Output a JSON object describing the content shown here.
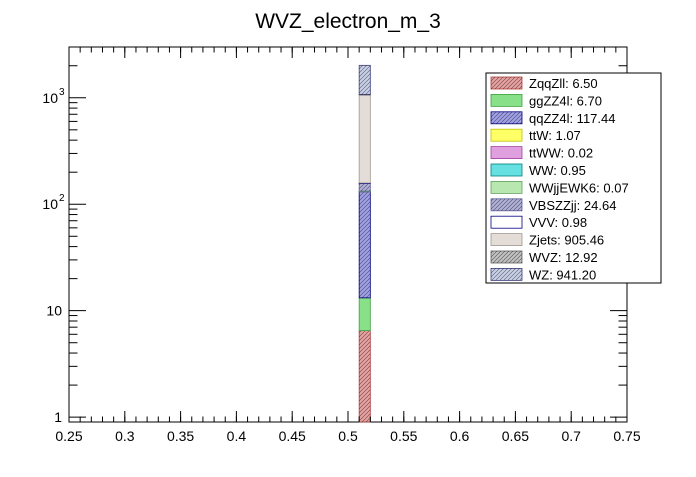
{
  "chart_data": {
    "type": "bar",
    "stacked": true,
    "title": "WVZ_electron_m_3",
    "xlabel": "",
    "ylabel": "",
    "xlim": [
      0.25,
      0.75
    ],
    "ylim": [
      0.9,
      3000
    ],
    "yscale": "log",
    "bin": [
      0.51,
      0.52
    ],
    "x_ticks": [
      "0.25",
      "0.3",
      "0.35",
      "0.4",
      "0.45",
      "0.5",
      "0.55",
      "0.6",
      "0.65",
      "0.7",
      "0.75"
    ],
    "x_tick_values": [
      0.25,
      0.3,
      0.35,
      0.4,
      0.45,
      0.5,
      0.55,
      0.6,
      0.65,
      0.7,
      0.75
    ],
    "y_ticks": [
      {
        "value": 1,
        "base": "1",
        "exp": ""
      },
      {
        "value": 10,
        "base": "10",
        "exp": ""
      },
      {
        "value": 100,
        "base": "10",
        "exp": "2"
      },
      {
        "value": 1000,
        "base": "10",
        "exp": "3"
      }
    ],
    "legend_position": "top-right",
    "series": [
      {
        "name": "ZqqZll",
        "value": 6.5,
        "label": "ZqqZll: 6.50",
        "color": "#e8a0a0",
        "stroke": "#b04040",
        "hatch": true
      },
      {
        "name": "ggZZ4l",
        "value": 6.7,
        "label": "ggZZ4l: 6.70",
        "color": "#88e088",
        "stroke": "#40a040",
        "hatch": false
      },
      {
        "name": "qqZZ4l",
        "value": 117.44,
        "label": "qqZZ4l: 117.44",
        "color": "#a0a0e8",
        "stroke": "#000080",
        "hatch": true
      },
      {
        "name": "ttW",
        "value": 1.07,
        "label": "ttW: 1.07",
        "color": "#ffff66",
        "stroke": "#c0c000",
        "hatch": false
      },
      {
        "name": "ttWW",
        "value": 0.02,
        "label": "ttWW: 0.02",
        "color": "#e0a0e0",
        "stroke": "#a040a0",
        "hatch": false
      },
      {
        "name": "WW",
        "value": 0.95,
        "label": "WW: 0.95",
        "color": "#66e0e0",
        "stroke": "#008080",
        "hatch": false
      },
      {
        "name": "WWjjEWK6",
        "value": 0.07,
        "label": "WWjjEWK6: 0.07",
        "color": "#b8e8b0",
        "stroke": "#60a060",
        "hatch": false
      },
      {
        "name": "VBSZZjj",
        "value": 24.64,
        "label": "VBSZZjj: 24.64",
        "color": "#b0b0d8",
        "stroke": "#6060a0",
        "hatch": true
      },
      {
        "name": "VVV",
        "value": 0.98,
        "label": "VVV: 0.98",
        "color": "#ffffff",
        "stroke": "#000080",
        "hatch": false
      },
      {
        "name": "Zjets",
        "value": 905.46,
        "label": "Zjets: 905.46",
        "color": "#e4dcd6",
        "stroke": "#a09890",
        "hatch": false
      },
      {
        "name": "WVZ",
        "value": 12.92,
        "label": "WVZ: 12.92",
        "color": "#c0c0c0",
        "stroke": "#606060",
        "hatch": true
      },
      {
        "name": "WZ",
        "value": 941.2,
        "label": "WZ: 941.20",
        "color": "#c8d0e8",
        "stroke": "#404080",
        "hatch": true
      }
    ]
  }
}
